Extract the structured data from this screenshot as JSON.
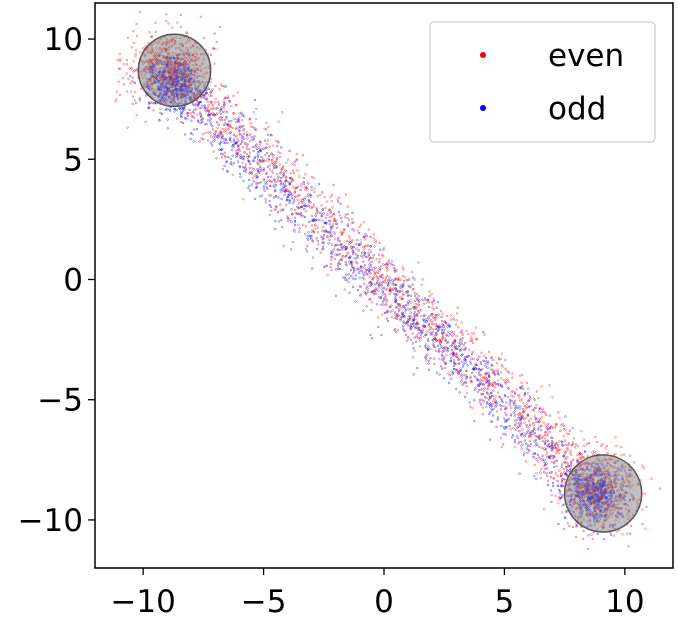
{
  "chart_data": {
    "type": "scatter",
    "title": "",
    "xlabel": "",
    "ylabel": "",
    "xlim": [
      -12,
      12
    ],
    "ylim": [
      -12,
      11.5
    ],
    "x_ticks": [
      -10,
      -5,
      0,
      5,
      10
    ],
    "y_ticks": [
      -10,
      -5,
      0,
      5,
      10
    ],
    "x_tick_labels": [
      "−10",
      "−5",
      "0",
      "5",
      "10"
    ],
    "y_tick_labels": [
      "−10",
      "−5",
      "0",
      "5",
      "10"
    ],
    "grid": false,
    "legend_position": "top-right",
    "series": [
      {
        "name": "even",
        "color": "#ff0000",
        "distribution": {
          "line_from": [
            -9,
            8.8
          ],
          "line_to": [
            9,
            -8.8
          ],
          "count": 2500,
          "perpendicular_spread": 0.6,
          "cluster_fraction": 0.4,
          "cluster_spread": 0.8,
          "seed": 11
        }
      },
      {
        "name": "odd",
        "color": "#0000ff",
        "distribution": {
          "line_from": [
            -8.8,
            8.2
          ],
          "line_to": [
            8.8,
            -9
          ],
          "count": 2500,
          "perpendicular_spread": 0.55,
          "cluster_fraction": 0.45,
          "cluster_spread": 0.6,
          "seed": 29
        }
      }
    ],
    "highlight_circles": [
      {
        "center": [
          -8.7,
          8.7
        ],
        "radius": 1.5,
        "color": "#808080"
      },
      {
        "center": [
          9.1,
          -8.9
        ],
        "radius": 1.6,
        "color": "#808080"
      }
    ]
  }
}
